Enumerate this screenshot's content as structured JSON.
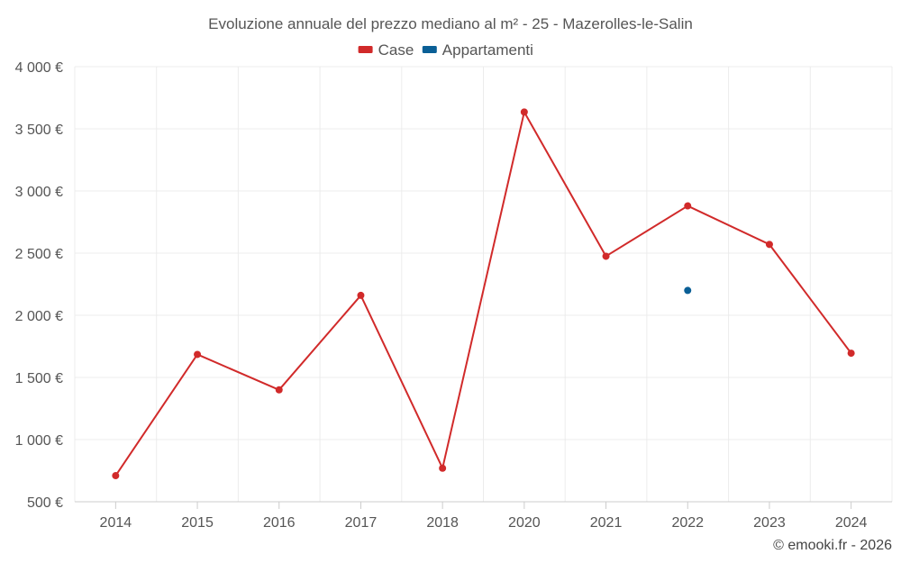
{
  "chart_data": {
    "type": "line",
    "title": "Evoluzione annuale del prezzo mediano al m² - 25 - Mazerolles-le-Salin",
    "categories": [
      "2014",
      "2015",
      "2016",
      "2017",
      "2018",
      "2020",
      "2021",
      "2022",
      "2023",
      "2024"
    ],
    "series": [
      {
        "name": "Case",
        "color": "#d12a2a",
        "values": [
          710,
          1685,
          1400,
          2160,
          770,
          3635,
          2475,
          2880,
          2570,
          1695
        ]
      },
      {
        "name": "Appartamenti",
        "color": "#0a5f96",
        "values": [
          null,
          null,
          null,
          null,
          null,
          null,
          null,
          2200,
          null,
          null
        ]
      }
    ],
    "ylim": [
      500,
      4000
    ],
    "yticks": [
      500,
      1000,
      1500,
      2000,
      2500,
      3000,
      3500,
      4000
    ],
    "ytick_labels": [
      "500 €",
      "1 000 €",
      "1 500 €",
      "2 000 €",
      "2 500 €",
      "3 000 €",
      "3 500 €",
      "4 000 €"
    ],
    "xlabel": "",
    "ylabel": "",
    "grid": true,
    "legend_position": "top-center"
  },
  "credit": "© emooki.fr - 2026"
}
